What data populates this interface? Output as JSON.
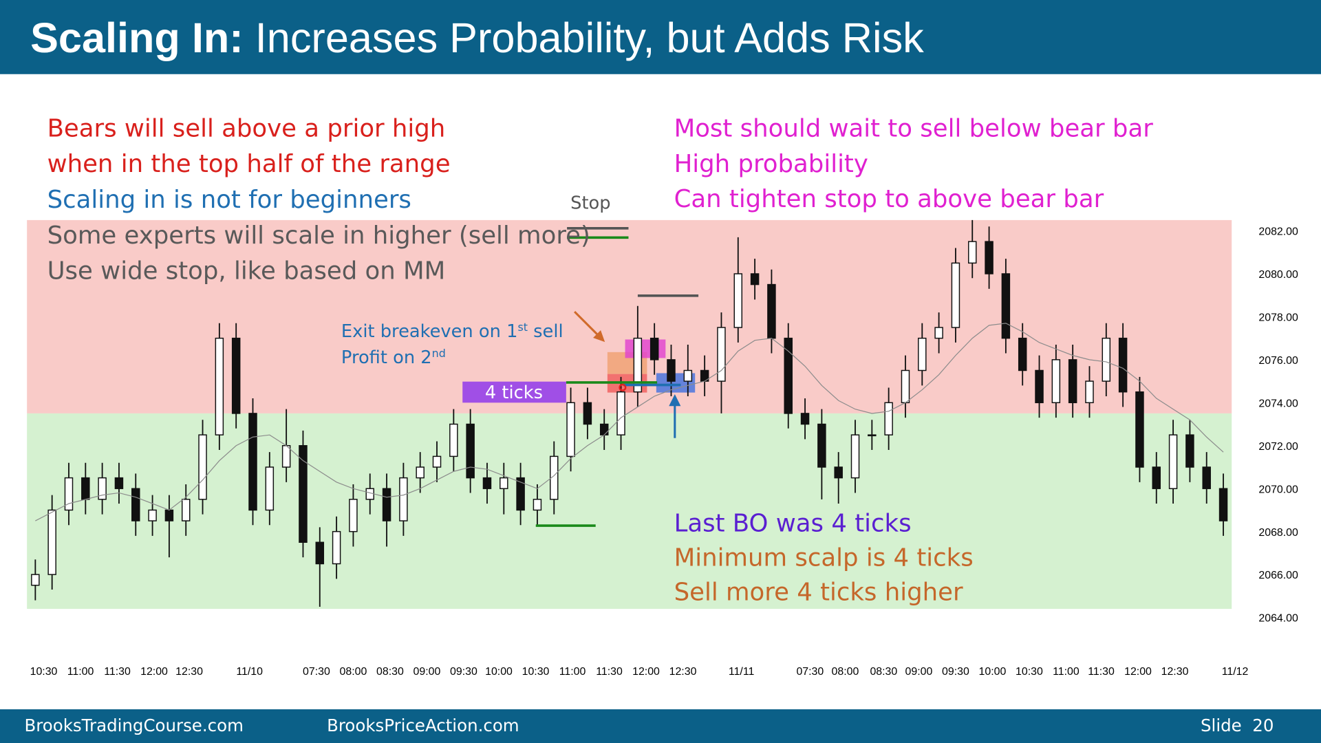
{
  "header": {
    "title_bold": "Scaling In:",
    "title_rest": "Increases Probability, but Adds Risk"
  },
  "notes_left": [
    {
      "text": "Bears will sell above a prior high",
      "color": "#d9201c"
    },
    {
      "text": "when in the top half of the range",
      "color": "#d9201c"
    },
    {
      "text": "Scaling in is not for beginners",
      "color": "#1f6fb2"
    },
    {
      "text": "Some experts will scale in higher (sell more)",
      "color": "#595959"
    },
    {
      "text": "Use wide stop, like based on MM",
      "color": "#595959"
    }
  ],
  "notes_right": [
    {
      "text": "Most should wait to sell below bear bar",
      "color": "#e020d0"
    },
    {
      "text": "High probability",
      "color": "#e020d0"
    },
    {
      "text": "Can tighten stop to above bear bar",
      "color": "#e020d0"
    }
  ],
  "notes_bottom": [
    {
      "text": "Last BO was 4 ticks",
      "color": "#5a1fd1"
    },
    {
      "text": "Minimum scalp is 4 ticks",
      "color": "#c5672a"
    },
    {
      "text": "Sell more 4 ticks higher",
      "color": "#c5672a"
    }
  ],
  "chart_data": {
    "type": "candlestick",
    "open": [
      2065.5,
      2066,
      2069,
      2070.5,
      2069.5,
      2070.5,
      2070,
      2068.5,
      2069,
      2068.5,
      2069.5,
      2072.5,
      2077,
      2073.5,
      2069,
      2071,
      2072,
      2067.5,
      2066.5,
      2068,
      2069.5,
      2070,
      2068.5,
      2070.5,
      2071,
      2071.5,
      2073,
      2070.5,
      2070,
      2070.5,
      2069,
      2069.5,
      2071.5,
      2074,
      2073,
      2072.5,
      2074.5,
      2077,
      2076,
      2075,
      2075.5,
      2075,
      2077.5,
      2080,
      2079.5,
      2077,
      2073.5,
      2073,
      2071,
      2070.5,
      2072.5,
      2072.5,
      2074,
      2075.5,
      2077,
      2077.5,
      2080.5,
      2081.5,
      2080,
      2077,
      2075.5,
      2074,
      2076,
      2074,
      2075,
      2077,
      2074.5,
      2071,
      2070,
      2072.5,
      2071,
      2070
    ],
    "high": [
      2066.7,
      2069.7,
      2071.2,
      2071.2,
      2071.2,
      2071.2,
      2070.7,
      2069.7,
      2069.7,
      2070.2,
      2073.2,
      2077.7,
      2077.7,
      2074.2,
      2071.7,
      2073.7,
      2072.7,
      2068.2,
      2068.7,
      2070.2,
      2070.7,
      2070.7,
      2071.2,
      2071.7,
      2072.2,
      2073.7,
      2073.7,
      2071.2,
      2071.2,
      2071.2,
      2070.2,
      2072.2,
      2074.7,
      2074.7,
      2073.7,
      2075.2,
      2078.5,
      2077.7,
      2076.7,
      2076.7,
      2076.2,
      2078.2,
      2081.7,
      2080.7,
      2080.2,
      2077.7,
      2074.2,
      2073.7,
      2071.7,
      2073.2,
      2073.2,
      2074.7,
      2076.2,
      2077.7,
      2078.2,
      2081.2,
      2082.5,
      2082.2,
      2080.7,
      2077.7,
      2076.2,
      2076.7,
      2076.7,
      2075.7,
      2077.7,
      2077.7,
      2075.2,
      2071.7,
      2073.2,
      2073.2,
      2071.7,
      2070.7
    ],
    "low": [
      2064.8,
      2065.3,
      2068.3,
      2068.8,
      2068.8,
      2069.3,
      2067.8,
      2067.8,
      2066.8,
      2067.8,
      2068.8,
      2071.8,
      2072.8,
      2068.3,
      2068.3,
      2070.3,
      2066.8,
      2064.5,
      2065.8,
      2067.3,
      2068.8,
      2067.3,
      2067.8,
      2069.8,
      2070.3,
      2070.8,
      2069.8,
      2069.3,
      2068.8,
      2068.3,
      2068.3,
      2068.8,
      2070.8,
      2072.3,
      2071.8,
      2071.8,
      2073.8,
      2075.3,
      2074.3,
      2074.3,
      2074.3,
      2073.5,
      2076.8,
      2078.8,
      2076.3,
      2072.8,
      2072.3,
      2069.5,
      2069.3,
      2069.8,
      2071.8,
      2071.8,
      2073.3,
      2074.8,
      2076.3,
      2076.8,
      2079.8,
      2079.3,
      2076.3,
      2074.8,
      2073.3,
      2073.3,
      2073.3,
      2073.3,
      2074.3,
      2073.8,
      2070.3,
      2069.3,
      2069.3,
      2070.3,
      2069.3,
      2067.8
    ],
    "close": [
      2066,
      2069,
      2070.5,
      2069.5,
      2070.5,
      2070,
      2068.5,
      2069,
      2068.5,
      2069.5,
      2072.5,
      2077,
      2073.5,
      2069,
      2071,
      2072,
      2067.5,
      2066.5,
      2068,
      2069.5,
      2070,
      2068.5,
      2070.5,
      2071,
      2071.5,
      2073,
      2070.5,
      2070,
      2070.5,
      2069,
      2069.5,
      2071.5,
      2074,
      2073,
      2072.5,
      2074.5,
      2077,
      2076,
      2075,
      2075.5,
      2075,
      2077.5,
      2080,
      2079.5,
      2077,
      2073.5,
      2073,
      2071,
      2070.5,
      2072.5,
      2072.5,
      2074,
      2075.5,
      2077,
      2077.5,
      2080.5,
      2081.5,
      2080,
      2077,
      2075.5,
      2074,
      2076,
      2074,
      2075,
      2077,
      2074.5,
      2071,
      2070,
      2072.5,
      2071,
      2070,
      2068.5
    ],
    "color_up": "#ffffff",
    "color_down": "#111111",
    "ma": {
      "color": "#8c8c8c",
      "values": [
        2068.5,
        2068.9,
        2069.3,
        2069.5,
        2069.7,
        2069.8,
        2069.6,
        2069.3,
        2069.0,
        2069.6,
        2070.4,
        2071.3,
        2072,
        2072.4,
        2072.5,
        2072,
        2071.3,
        2070.8,
        2070.3,
        2070,
        2069.8,
        2069.6,
        2069.7,
        2070,
        2070.4,
        2070.8,
        2071,
        2070.9,
        2070.6,
        2070.3,
        2070,
        2070.6,
        2071.4,
        2072,
        2072.5,
        2073.3,
        2073.8,
        2074.3,
        2074.6,
        2074.8,
        2075,
        2075.5,
        2076.4,
        2076.9,
        2077,
        2076.4,
        2075.7,
        2074.8,
        2074.1,
        2073.7,
        2073.5,
        2073.6,
        2074,
        2074.6,
        2075.3,
        2076.2,
        2077,
        2077.6,
        2077.7,
        2077.3,
        2076.8,
        2076.5,
        2076.2,
        2076,
        2075.9,
        2075.6,
        2075,
        2074.2,
        2073.7,
        2073.2,
        2072.4,
        2071.7
      ]
    },
    "zones": [
      {
        "from": 2073.5,
        "to": 2082.5,
        "color": "#f9cbc8"
      },
      {
        "from": 2064.4,
        "to": 2073.5,
        "color": "#d5f1d0"
      }
    ],
    "ylim": [
      2064,
      2082.5
    ],
    "yticks": [
      {
        "value": 2064,
        "label": "2064.00"
      },
      {
        "value": 2066,
        "label": "2066.00"
      },
      {
        "value": 2068,
        "label": "2068.00"
      },
      {
        "value": 2070,
        "label": "2070.00"
      },
      {
        "value": 2072,
        "label": "2072.00"
      },
      {
        "value": 2074,
        "label": "2074.00"
      },
      {
        "value": 2076,
        "label": "2076.00"
      },
      {
        "value": 2078,
        "label": "2078.00"
      },
      {
        "value": 2080,
        "label": "2080.00"
      },
      {
        "value": 2082,
        "label": "2082.00"
      }
    ],
    "xlim": [
      -0.5,
      71.5
    ],
    "xticks": [
      {
        "value": 0.5,
        "label": "10:30"
      },
      {
        "value": 2.7,
        "label": "11:00"
      },
      {
        "value": 4.9,
        "label": "11:30"
      },
      {
        "value": 7.1,
        "label": "12:00"
      },
      {
        "value": 9.2,
        "label": "12:30"
      },
      {
        "value": 12.8,
        "label": "11/10"
      },
      {
        "value": 16.8,
        "label": "07:30"
      },
      {
        "value": 19.0,
        "label": "08:00"
      },
      {
        "value": 21.2,
        "label": "08:30"
      },
      {
        "value": 23.4,
        "label": "09:00"
      },
      {
        "value": 25.6,
        "label": "09:30"
      },
      {
        "value": 27.7,
        "label": "10:00"
      },
      {
        "value": 29.9,
        "label": "10:30"
      },
      {
        "value": 32.1,
        "label": "11:00"
      },
      {
        "value": 34.3,
        "label": "11:30"
      },
      {
        "value": 36.5,
        "label": "12:00"
      },
      {
        "value": 38.7,
        "label": "12:30"
      },
      {
        "value": 42.2,
        "label": "11/11"
      },
      {
        "value": 46.3,
        "label": "07:30"
      },
      {
        "value": 48.4,
        "label": "08:00"
      },
      {
        "value": 50.7,
        "label": "08:30"
      },
      {
        "value": 52.8,
        "label": "09:00"
      },
      {
        "value": 55.0,
        "label": "09:30"
      },
      {
        "value": 57.2,
        "label": "10:00"
      },
      {
        "value": 59.4,
        "label": "10:30"
      },
      {
        "value": 61.6,
        "label": "11:00"
      },
      {
        "value": 63.7,
        "label": "11:30"
      },
      {
        "value": 65.9,
        "label": "12:00"
      },
      {
        "value": 68.1,
        "label": "12:30"
      },
      {
        "value": 71.7,
        "label": "11/12"
      }
    ],
    "annotations": {
      "stop": "Stop",
      "four_ticks": "4 ticks",
      "exit_note": {
        "line1": [
          "Exit breakeven on 1",
          "st",
          " sell"
        ],
        "line2": [
          "Profit on 2",
          "nd"
        ]
      }
    }
  },
  "footer": {
    "left": "BrooksTradingCourse.com",
    "center": "BrooksPriceAction.com",
    "slide": "Slide  20"
  }
}
